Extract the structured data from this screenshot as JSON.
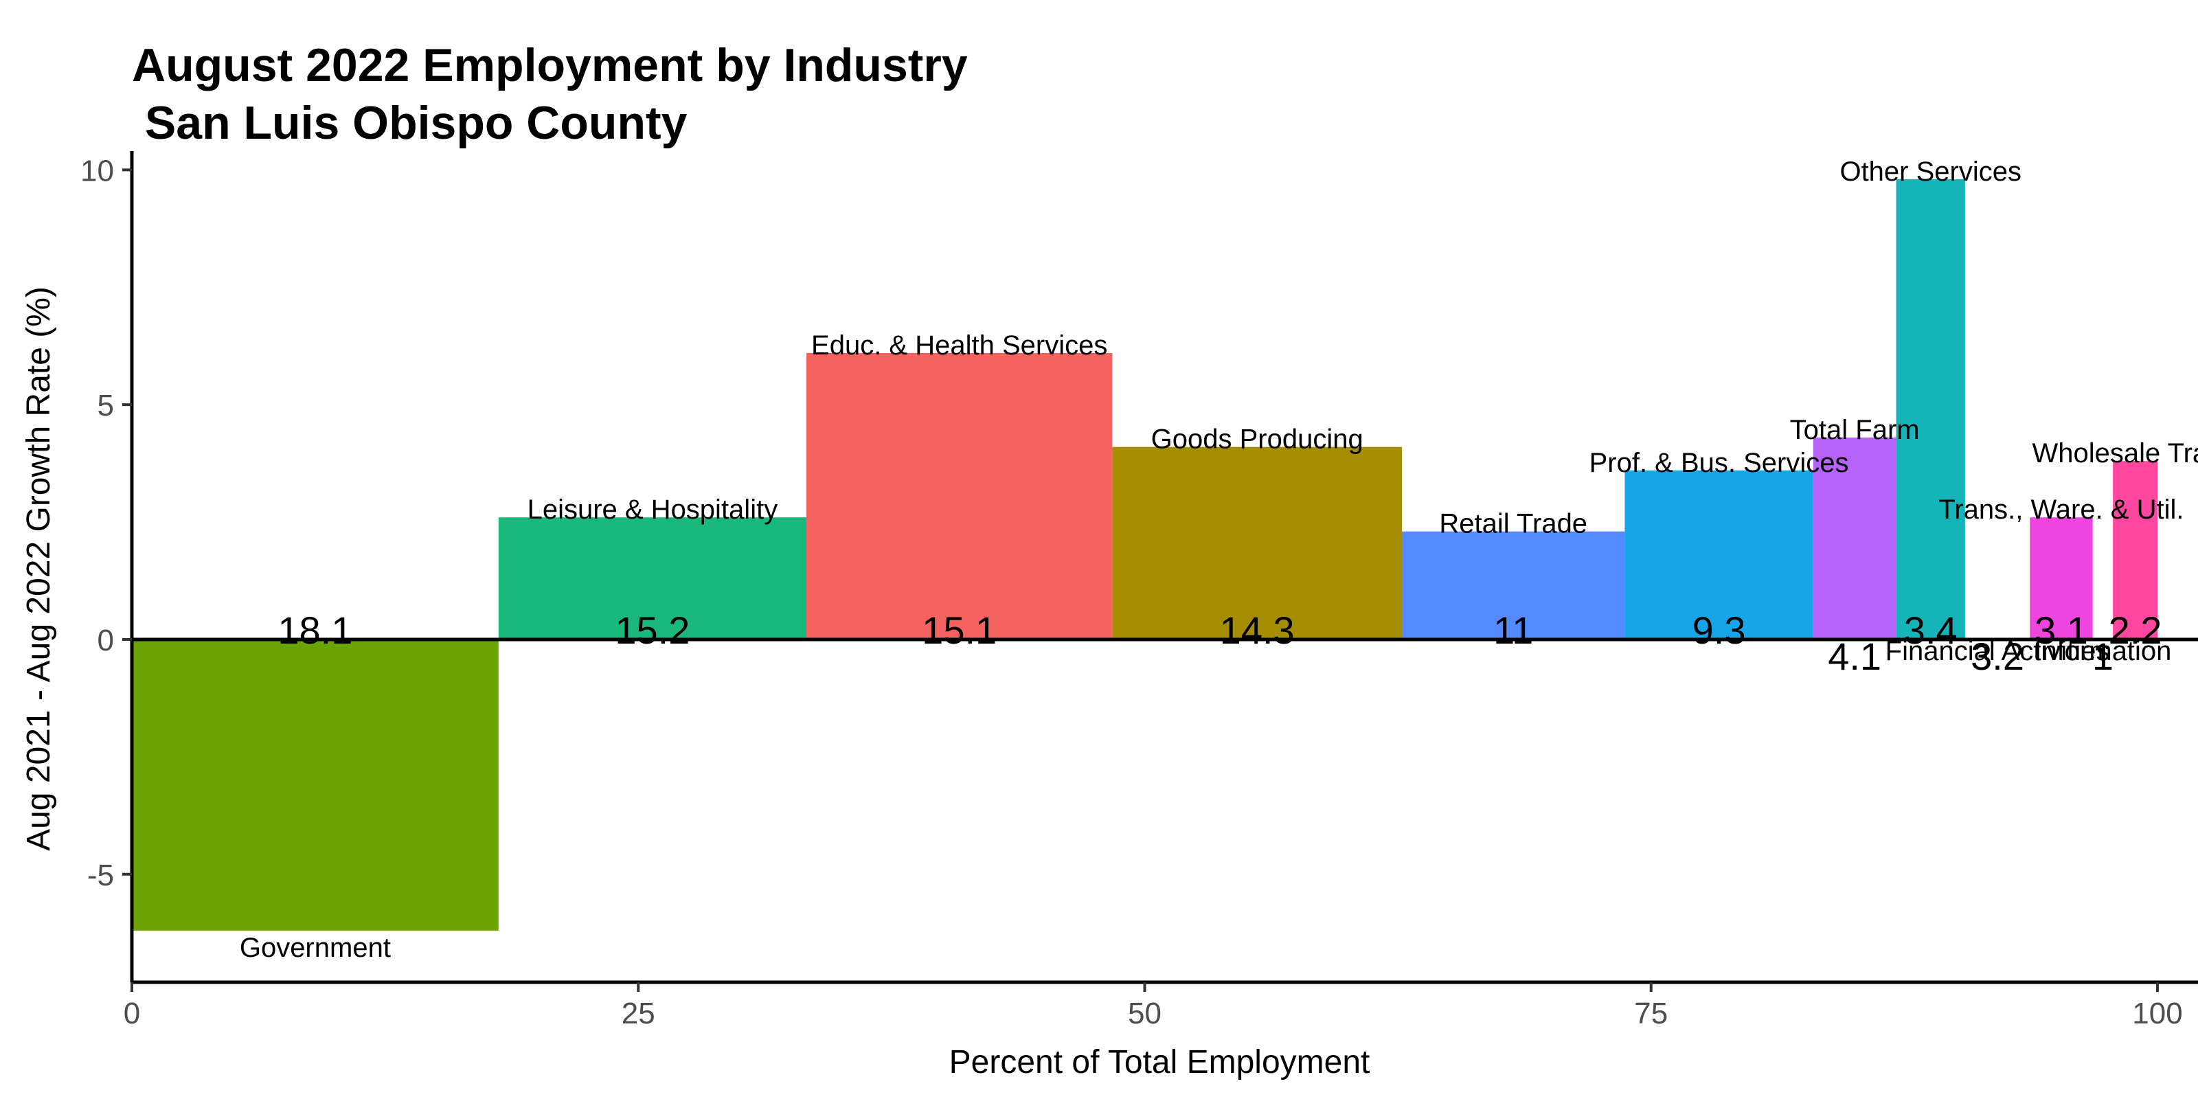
{
  "chart_data": {
    "type": "bar",
    "title_line1": "August 2022 Employment by Industry",
    "title_line2": " San Luis Obispo County",
    "xlabel": "Percent of Total Employment",
    "ylabel": "Aug 2021 - Aug 2022 Growth Rate (%)",
    "xlim": [
      0,
      102
    ],
    "ylim": [
      -7.3,
      10.4
    ],
    "x_ticks": [
      0,
      25,
      50,
      75,
      100
    ],
    "y_ticks": [
      -5,
      0,
      5,
      10
    ],
    "y_tick_labels": [
      "-5",
      "0",
      "5",
      "10"
    ],
    "grid": false,
    "legend": "none",
    "bars": [
      {
        "category": "Government",
        "share": 18.1,
        "share_label": "18.1",
        "growth": -6.2,
        "color": "#6BA300"
      },
      {
        "category": "Leisure & Hospitality",
        "share": 15.2,
        "share_label": "15.2",
        "growth": 2.6,
        "color": "#1AB87A"
      },
      {
        "category": "Educ. & Health Services",
        "share": 15.1,
        "share_label": "15.1",
        "growth": 6.1,
        "color": "#F3625E"
      },
      {
        "category": "Goods Producing",
        "share": 14.3,
        "share_label": "14.3",
        "growth": 4.1,
        "color": "#A58E03"
      },
      {
        "category": "Retail Trade",
        "share": 11,
        "share_label": "11",
        "growth": 2.3,
        "color": "#538AFF"
      },
      {
        "category": "Prof. & Bus. Services",
        "share": 9.3,
        "share_label": "9.3",
        "growth": 3.6,
        "color": "#16A5E6"
      },
      {
        "category": "Total Farm",
        "share": 4.1,
        "share_label": "4.1",
        "growth": 4.3,
        "color": "#B762FB"
      },
      {
        "category": "Other Services",
        "share": 3.4,
        "share_label": "3.4",
        "growth": 9.8,
        "color": "#14B4B8"
      },
      {
        "category": "Financial Activities",
        "share": 3.2,
        "share_label": "3.2",
        "growth": 0,
        "color": "#21B48F"
      },
      {
        "category": "Trans., Ware. & Util.",
        "share": 3.1,
        "share_label": "3.1",
        "growth": 2.6,
        "color": "#EE45DF"
      },
      {
        "category": "Information",
        "share": 1,
        "share_label": "1",
        "growth": 0,
        "color": "#9E9E9E"
      },
      {
        "category": "Wholesale Trade",
        "share": 2.2,
        "share_label": "2.2",
        "growth": 3.8,
        "color": "#FF479F"
      }
    ]
  }
}
